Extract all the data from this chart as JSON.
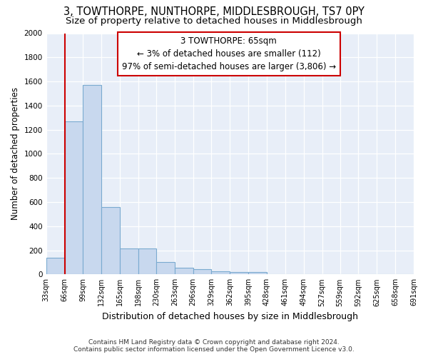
{
  "title": "3, TOWTHORPE, NUNTHORPE, MIDDLESBROUGH, TS7 0PY",
  "subtitle": "Size of property relative to detached houses in Middlesbrough",
  "xlabel": "Distribution of detached houses by size in Middlesbrough",
  "ylabel": "Number of detached properties",
  "footer_line1": "Contains HM Land Registry data © Crown copyright and database right 2024.",
  "footer_line2": "Contains public sector information licensed under the Open Government Licence v3.0.",
  "annotation_line1": "3 TOWTHORPE: 65sqm",
  "annotation_line2": "← 3% of detached houses are smaller (112)",
  "annotation_line3": "97% of semi-detached houses are larger (3,806) →",
  "bar_edges": [
    33,
    66,
    99,
    132,
    165,
    198,
    230,
    263,
    296,
    329,
    362,
    395,
    428,
    461,
    494,
    527,
    559,
    592,
    625,
    658,
    691
  ],
  "bar_heights": [
    140,
    1270,
    1570,
    560,
    215,
    215,
    100,
    55,
    45,
    25,
    20,
    20,
    0,
    0,
    0,
    0,
    0,
    0,
    0,
    0
  ],
  "bar_color": "#c8d8ee",
  "bar_edge_color": "#7aaad0",
  "red_line_x": 66,
  "annotation_box_color": "#cc0000",
  "background_color": "#ffffff",
  "plot_bg_color": "#e8eef8",
  "ylim": [
    0,
    2000
  ],
  "xlim": [
    33,
    691
  ],
  "grid_color": "#ffffff",
  "title_fontsize": 10.5,
  "subtitle_fontsize": 9.5,
  "ylabel_fontsize": 8.5,
  "xlabel_fontsize": 9,
  "tick_fontsize": 7,
  "footer_fontsize": 6.5,
  "annotation_fontsize": 8.5
}
